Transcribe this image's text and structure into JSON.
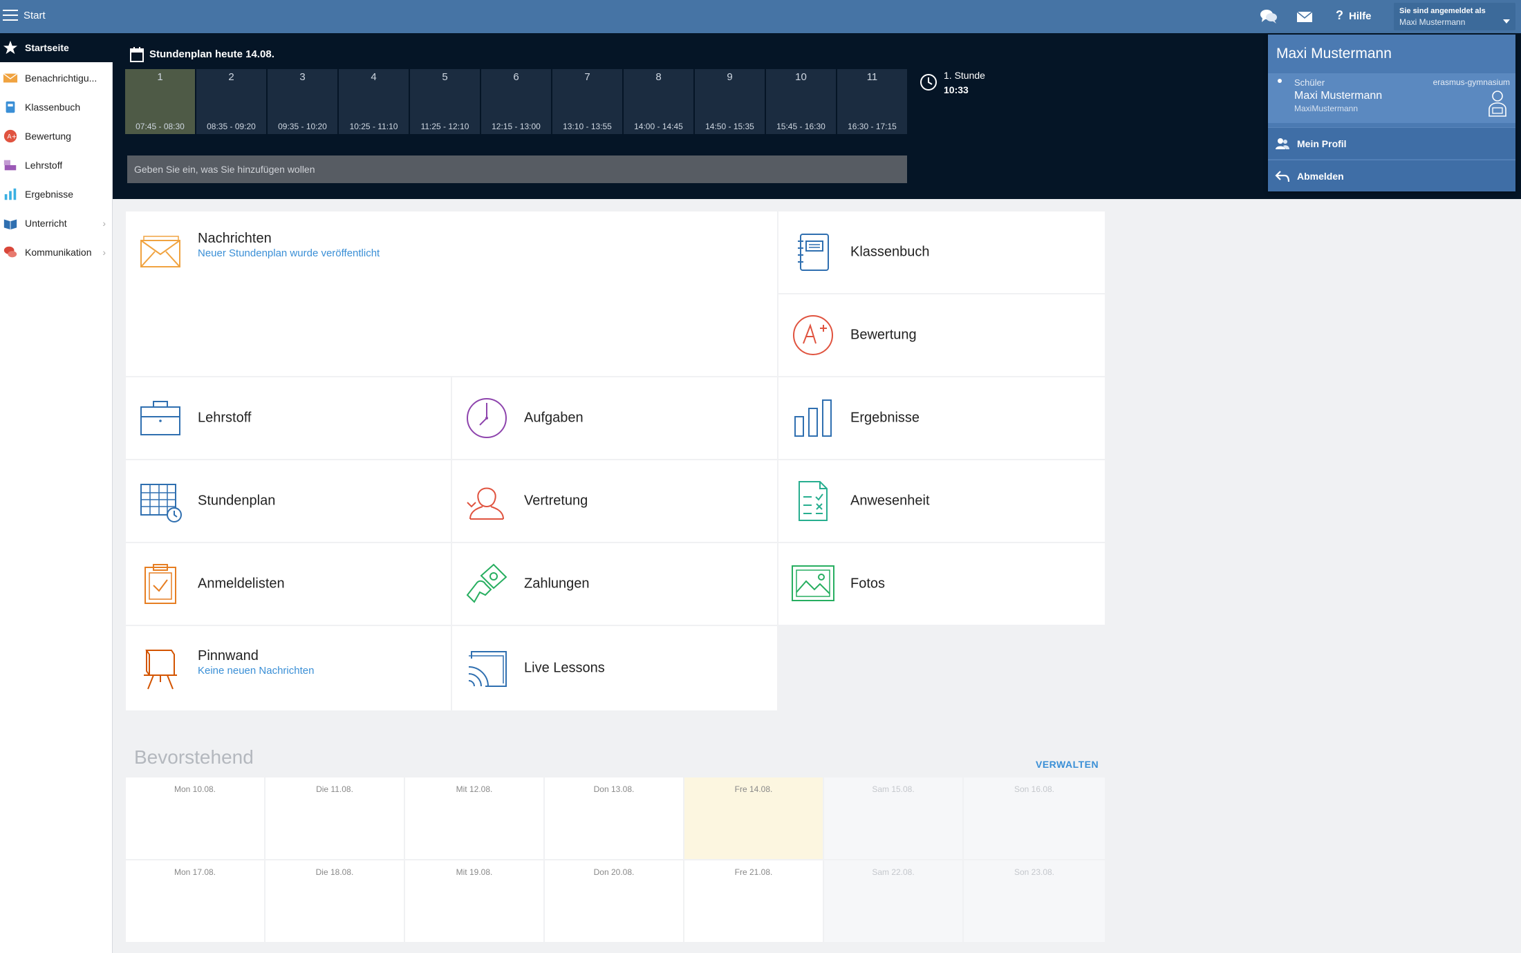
{
  "topbar": {
    "title": "Start",
    "help_label": "Hilfe",
    "help_glyph": "?",
    "login_line1": "Sie sind angemeldet als",
    "login_line2": "Maxi Mustermann"
  },
  "timetable": {
    "heading": "Stundenplan heute 14.08.",
    "periods": [
      {
        "num": "1",
        "time": "07:45 - 08:30"
      },
      {
        "num": "2",
        "time": "08:35 - 09:20"
      },
      {
        "num": "3",
        "time": "09:35 - 10:20"
      },
      {
        "num": "4",
        "time": "10:25 - 11:10"
      },
      {
        "num": "5",
        "time": "11:25 - 12:10"
      },
      {
        "num": "6",
        "time": "12:15 - 13:00"
      },
      {
        "num": "7",
        "time": "13:10 - 13:55"
      },
      {
        "num": "8",
        "time": "14:00 - 14:45"
      },
      {
        "num": "9",
        "time": "14:50 - 15:35"
      },
      {
        "num": "10",
        "time": "15:45 - 16:30"
      },
      {
        "num": "11",
        "time": "16:30 - 17:15"
      }
    ],
    "current_lesson": "1. Stunde",
    "current_time": "10:33",
    "add_placeholder": "Geben Sie ein, was Sie hinzufügen wollen"
  },
  "sidebar": {
    "items": [
      {
        "label": "Startseite",
        "icon": "star-icon"
      },
      {
        "label": "Benachrichtigu...",
        "icon": "envelope-icon"
      },
      {
        "label": "Klassenbuch",
        "icon": "book-icon"
      },
      {
        "label": "Bewertung",
        "icon": "grade-icon"
      },
      {
        "label": "Lehrstoff",
        "icon": "materials-icon"
      },
      {
        "label": "Ergebnisse",
        "icon": "bar-chart-icon"
      },
      {
        "label": "Unterricht",
        "icon": "teaching-icon"
      },
      {
        "label": "Kommunikation",
        "icon": "chat-icon"
      }
    ],
    "chevron": "›"
  },
  "tiles": {
    "nachrichten": {
      "name": "Nachrichten",
      "sub": "Neuer Stundenplan wurde veröffentlicht"
    },
    "klassenbuch": {
      "name": "Klassenbuch"
    },
    "bewertung": {
      "name": "Bewertung"
    },
    "lehrstoff": {
      "name": "Lehrstoff"
    },
    "aufgaben": {
      "name": "Aufgaben"
    },
    "ergebnisse": {
      "name": "Ergebnisse"
    },
    "stundenplan": {
      "name": "Stundenplan"
    },
    "vertretung": {
      "name": "Vertretung"
    },
    "anwesenheit": {
      "name": "Anwesenheit"
    },
    "anmeldelisten": {
      "name": "Anmeldelisten"
    },
    "zahlungen": {
      "name": "Zahlungen"
    },
    "fotos": {
      "name": "Fotos"
    },
    "pinnwand": {
      "name": "Pinnwand",
      "sub": "Keine neuen Nachrichten"
    },
    "live": {
      "name": "Live Lessons"
    }
  },
  "upcoming": {
    "title": "Bevorstehend",
    "manage_label": "VERWALTEN",
    "days": [
      "Mon 10.08.",
      "Die 11.08.",
      "Mit 12.08.",
      "Don 13.08.",
      "Fre 14.08.",
      "Sam 15.08.",
      "Son 16.08.",
      "Mon 17.08.",
      "Die 18.08.",
      "Mit 19.08.",
      "Don 20.08.",
      "Fre 21.08.",
      "Sam 22.08.",
      "Son 23.08."
    ]
  },
  "profile": {
    "name": "Maxi Mustermann",
    "role": "Schüler",
    "school": "erasmus-gymnasium",
    "account_name": "Maxi Mustermann",
    "username": "MaxiMustermann",
    "my_profile": "Mein Profil",
    "logout": "Abmelden"
  },
  "colors": {
    "topbar": "#4674a5",
    "band": "#051526",
    "accent": "#3a8fd6",
    "today": "#fcf6e0"
  }
}
